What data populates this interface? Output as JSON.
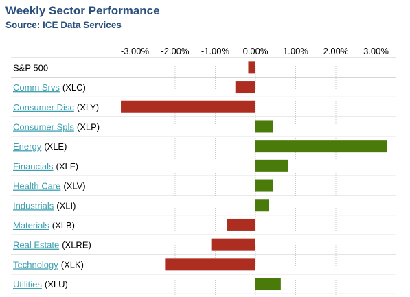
{
  "header": {
    "title": "Weekly Sector Performance",
    "subtitle": "Source: ICE Data Services"
  },
  "colors": {
    "positive": "#4a7a0a",
    "negative": "#ad2e21",
    "link": "#3a9fb0",
    "grid": "#c8c8c8",
    "title": "#2a4f7c"
  },
  "chart_data": {
    "type": "bar",
    "orientation": "horizontal",
    "xlim": [
      -3.5,
      3.5
    ],
    "ticks": [
      -3,
      -2,
      -1,
      0,
      1,
      2,
      3
    ],
    "tick_labels": [
      "-3.00%",
      "-2.00%",
      "-1.00%",
      "0.00%",
      "1.00%",
      "2.00%",
      "3.00%"
    ],
    "rows": [
      {
        "name": "S&P 500",
        "ticker": "",
        "value": -0.18,
        "link": false
      },
      {
        "name": "Comm Srvs",
        "ticker": "(XLC)",
        "value": -0.5,
        "link": true
      },
      {
        "name": "Consumer Disc",
        "ticker": "(XLY)",
        "value": -3.35,
        "link": true
      },
      {
        "name": "Consumer Spls",
        "ticker": "(XLP)",
        "value": 0.43,
        "link": true
      },
      {
        "name": "Energy",
        "ticker": "(XLE)",
        "value": 3.27,
        "link": true
      },
      {
        "name": "Financials",
        "ticker": "(XLF)",
        "value": 0.82,
        "link": true
      },
      {
        "name": "Health Care",
        "ticker": "(XLV)",
        "value": 0.43,
        "link": true
      },
      {
        "name": "Industrials",
        "ticker": "(XLI)",
        "value": 0.34,
        "link": true
      },
      {
        "name": "Materials",
        "ticker": "(XLB)",
        "value": -0.71,
        "link": true
      },
      {
        "name": "Real Estate",
        "ticker": "(XLRE)",
        "value": -1.1,
        "link": true
      },
      {
        "name": "Technology",
        "ticker": "(XLK)",
        "value": -2.25,
        "link": true
      },
      {
        "name": "Utilities",
        "ticker": "(XLU)",
        "value": 0.63,
        "link": true
      }
    ]
  }
}
